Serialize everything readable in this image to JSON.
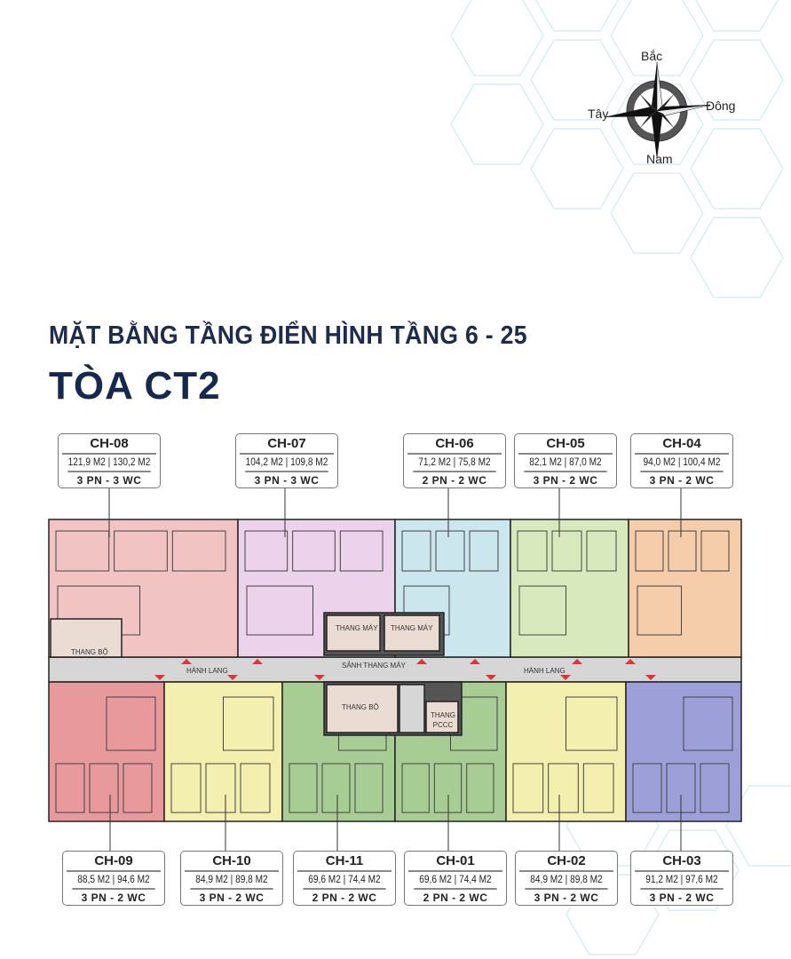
{
  "heading": {
    "line1": "MẶT BẰNG TẦNG ĐIỂN HÌNH TẦNG 6 - 25",
    "line2": "TÒA CT2"
  },
  "compass": {
    "north": "Bắc",
    "south": "Nam",
    "east": "Đông",
    "west": "Tây"
  },
  "plan_labels": {
    "stair_top": "THANG BỘ",
    "elevator_1": "THANG MÁY",
    "elevator_2": "THANG MÁY",
    "corridor_left": "HÀNH LANG",
    "corridor_right": "HÀNH LANG",
    "lobby": "SẢNH THANG MÁY",
    "stair_bottom": "THANG BỘ",
    "fire_stair": "THANG PCCC"
  },
  "units_top": [
    {
      "code": "CH-08",
      "area": "121,9 M2 | 130,2 M2",
      "rooms": "3 PN - 3 WC",
      "color": "#f1c3c3"
    },
    {
      "code": "CH-07",
      "area": "104,2 M2 | 109,8 M2",
      "rooms": "3 PN - 3 WC",
      "color": "#ecd2ea"
    },
    {
      "code": "CH-06",
      "area": "71,2 M2 | 75,8 M2",
      "rooms": "2 PN - 2 WC",
      "color": "#cbe6ec"
    },
    {
      "code": "CH-05",
      "area": "82,1 M2 | 87,0 M2",
      "rooms": "3 PN - 2 WC",
      "color": "#d8eabd"
    },
    {
      "code": "CH-04",
      "area": "94,0 M2 | 100,4 M2",
      "rooms": "3 PN - 2 WC",
      "color": "#f6cdaa"
    }
  ],
  "units_bottom": [
    {
      "code": "CH-09",
      "area": "88,5 M2 | 94,6 M2",
      "rooms": "3 PN - 2 WC",
      "color": "#e7999b"
    },
    {
      "code": "CH-10",
      "area": "84,9 M2 | 89,8 M2",
      "rooms": "3 PN - 2 WC",
      "color": "#f3efaf"
    },
    {
      "code": "CH-11",
      "area": "69,6 M2 | 74,4 M2",
      "rooms": "2 PN - 2 WC",
      "color": "#a8cd94"
    },
    {
      "code": "CH-01",
      "area": "69,6 M2 | 74,4 M2",
      "rooms": "2 PN - 2 WC",
      "color": "#a8cd94"
    },
    {
      "code": "CH-02",
      "area": "84,9 M2 | 89,8 M2",
      "rooms": "3 PN - 2 WC",
      "color": "#f3efaf"
    },
    {
      "code": "CH-03",
      "area": "91,2 M2 | 97,6 M2",
      "rooms": "3 PN - 2 WC",
      "color": "#9c9fd8"
    }
  ],
  "colors": {
    "heading": "#1d2b4c",
    "corridor": "#d6d6d6",
    "entry_marker": "#e0323a",
    "hex_pattern": "#cdeaf3"
  }
}
